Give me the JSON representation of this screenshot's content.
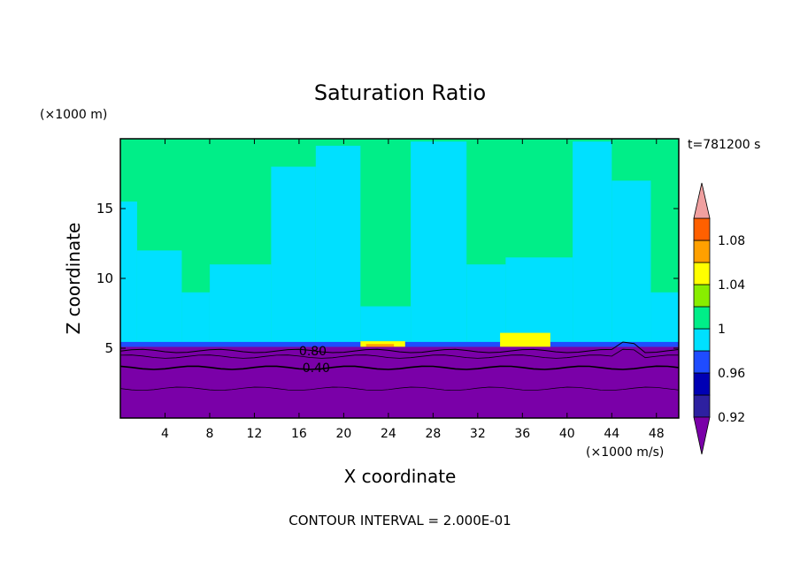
{
  "chart_data": {
    "type": "heatmap",
    "title": "Saturation Ratio",
    "xlabel": "X coordinate",
    "ylabel": "Z coordinate",
    "x_unit": "(×1000 m/s)",
    "y_unit": "(×1000 m)",
    "time_label": "t=781200 s",
    "footer": "CONTOUR INTERVAL = 2.000E-01",
    "xlim": [
      0,
      50
    ],
    "ylim": [
      0,
      20
    ],
    "xticks": [
      4,
      8,
      12,
      16,
      20,
      24,
      28,
      32,
      36,
      40,
      44,
      48
    ],
    "yticks": [
      5,
      10,
      15
    ],
    "colorbar": {
      "levels": [
        0.92,
        0.94,
        0.96,
        0.98,
        1.0,
        1.02,
        1.04,
        1.06,
        1.08,
        1.1
      ],
      "labels": [
        "0.92",
        "0.96",
        "1",
        "1.04",
        "1.08"
      ],
      "label_values": [
        0.92,
        0.96,
        1.0,
        1.04,
        1.08
      ],
      "colors": [
        "#7a00a8",
        "#2d20a0",
        "#0000b4",
        "#1f4cff",
        "#00e0ff",
        "#00ee88",
        "#88ee00",
        "#ffff00",
        "#ffa000",
        "#ff6000",
        "#ee1010",
        "#f0a0a0"
      ]
    },
    "contour_labels": [
      {
        "text": "0.80",
        "x": 16.0,
        "y": 4.8
      },
      {
        "text": "0.40",
        "x": 16.3,
        "y": 3.6
      }
    ],
    "regions": {
      "background_value": 1.0,
      "lower_layer_top": 5.1,
      "lower_layer_value": 0.8,
      "low_ratio_patches": [
        {
          "x0": 0,
          "x1": 1.5,
          "y0": 5.3,
          "y1": 15.5
        },
        {
          "x0": 1.5,
          "x1": 5.5,
          "y0": 5.3,
          "y1": 12.0
        },
        {
          "x0": 5.5,
          "x1": 8.0,
          "y0": 5.3,
          "y1": 9.0
        },
        {
          "x0": 8.0,
          "x1": 13.5,
          "y0": 5.3,
          "y1": 11.0
        },
        {
          "x0": 13.5,
          "x1": 17.5,
          "y0": 5.3,
          "y1": 18.0
        },
        {
          "x0": 17.5,
          "x1": 21.5,
          "y0": 5.3,
          "y1": 19.5
        },
        {
          "x0": 21.5,
          "x1": 26.0,
          "y0": 5.3,
          "y1": 8.0
        },
        {
          "x0": 26.0,
          "x1": 31.0,
          "y0": 5.3,
          "y1": 19.8
        },
        {
          "x0": 31.0,
          "x1": 34.5,
          "y0": 5.3,
          "y1": 11.0
        },
        {
          "x0": 34.5,
          "x1": 40.5,
          "y0": 5.3,
          "y1": 11.5
        },
        {
          "x0": 40.5,
          "x1": 44.0,
          "y0": 5.3,
          "y1": 19.8
        },
        {
          "x0": 44.0,
          "x1": 47.5,
          "y0": 5.3,
          "y1": 17.0
        },
        {
          "x0": 47.5,
          "x1": 50.0,
          "y0": 5.3,
          "y1": 9.0
        }
      ],
      "high_ratio_patches": [
        {
          "x0": 21.5,
          "x1": 25.5,
          "y0": 5.1,
          "y1": 5.5,
          "value": 1.04
        },
        {
          "x0": 34.0,
          "x1": 38.5,
          "y0": 5.1,
          "y1": 6.1,
          "value": 1.04
        },
        {
          "x0": 22.0,
          "x1": 24.5,
          "y0": 5.1,
          "y1": 5.3,
          "value": 1.06
        }
      ]
    }
  }
}
